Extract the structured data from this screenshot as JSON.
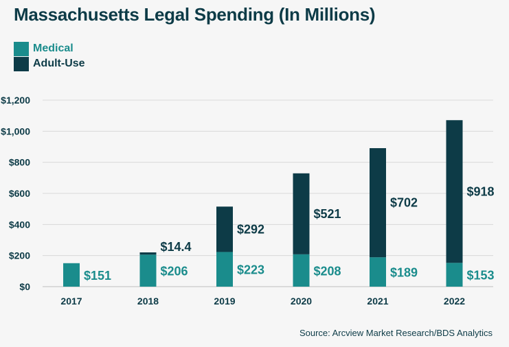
{
  "chart_data": {
    "type": "bar",
    "stacked": true,
    "title": "Massachusetts Legal Spending (In Millions)",
    "categories": [
      "2017",
      "2018",
      "2019",
      "2020",
      "2021",
      "2022"
    ],
    "series": [
      {
        "name": "Medical",
        "color": "#1a8c8c",
        "values": [
          151,
          206,
          223,
          208,
          189,
          153
        ],
        "labels": [
          "$151",
          "$206",
          "$223",
          "$208",
          "$189",
          "$153"
        ]
      },
      {
        "name": "Adult-Use",
        "color": "#0d3b47",
        "values": [
          0,
          14.4,
          292,
          521,
          702,
          918
        ],
        "labels": [
          "",
          "$14.4",
          "$292",
          "$521",
          "$702",
          "$918"
        ]
      }
    ],
    "ylim": [
      0,
      1200
    ],
    "yticks": [
      0,
      200,
      400,
      600,
      800,
      1000,
      1200
    ],
    "ytick_labels": [
      "$0",
      "$200",
      "$400",
      "$600",
      "$800",
      "$1,000",
      "$1,200"
    ],
    "grid": true,
    "legend": "top-left",
    "source": "Source: Arcview Market Research/BDS Analytics"
  }
}
